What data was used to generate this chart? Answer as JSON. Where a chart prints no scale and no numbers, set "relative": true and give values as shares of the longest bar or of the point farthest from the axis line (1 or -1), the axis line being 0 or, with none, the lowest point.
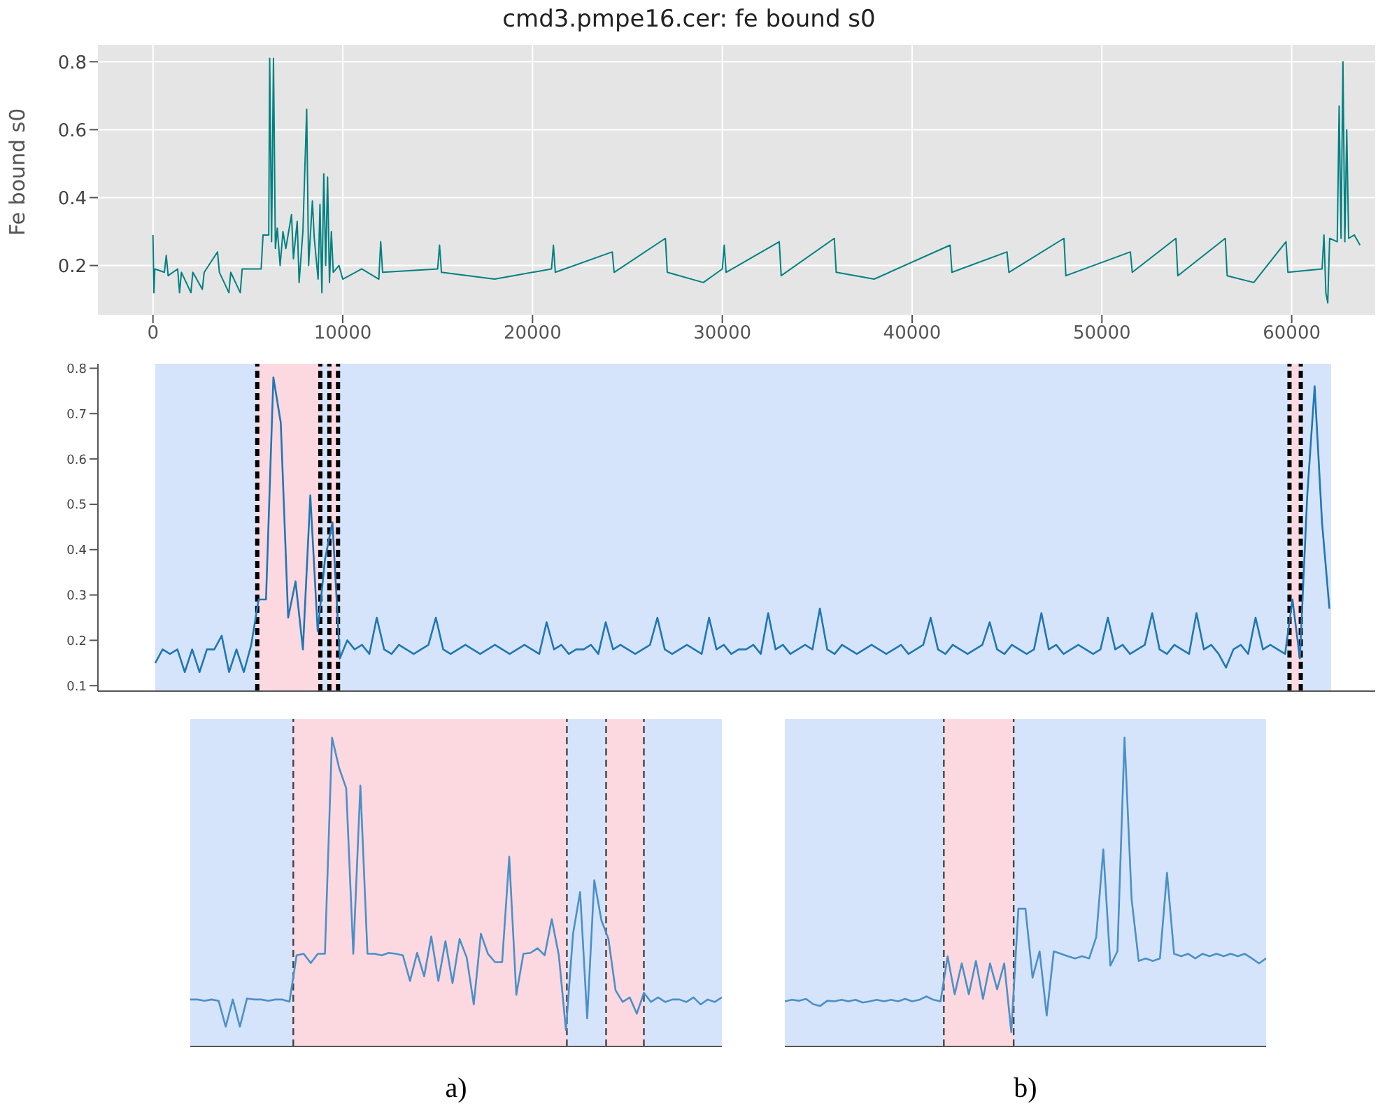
{
  "chart_data": [
    {
      "type": "line",
      "title": "cmd3.pmpe16.cer: fe bound s0",
      "ylabel": "Fe bound s0",
      "color": "#008080",
      "grid": true,
      "xlim": [
        -2900,
        64400
      ],
      "ylim": [
        0.055,
        0.85
      ],
      "xticks": [
        0,
        10000,
        20000,
        30000,
        40000,
        50000,
        60000
      ],
      "yticks": [
        0.2,
        0.4,
        0.6,
        0.8
      ],
      "x": [
        0,
        50,
        100,
        600,
        700,
        800,
        1300,
        1400,
        1500,
        2000,
        2100,
        2600,
        2700,
        3400,
        3500,
        4000,
        4100,
        4600,
        4700,
        5700,
        5800,
        6100,
        6150,
        6250,
        6350,
        6450,
        6550,
        6700,
        6850,
        7000,
        7300,
        7400,
        7600,
        7700,
        7900,
        8100,
        8200,
        8400,
        8500,
        8700,
        8800,
        8900,
        9000,
        9100,
        9200,
        9300,
        9400,
        9500,
        9800,
        10000,
        11000,
        11900,
        12000,
        12100,
        15000,
        15100,
        15200,
        18000,
        21000,
        21100,
        21200,
        24200,
        24300,
        27000,
        27100,
        29000,
        30000,
        30100,
        30200,
        33000,
        33100,
        35900,
        36000,
        38000,
        42000,
        42100,
        45000,
        45100,
        48000,
        48100,
        51500,
        51600,
        53900,
        54000,
        56500,
        56600,
        58000,
        59700,
        59800,
        61600,
        61700,
        61800,
        61900,
        62000,
        62400,
        62500,
        62600,
        62700,
        62800,
        62900,
        63000,
        63300,
        63600
      ],
      "values": [
        0.29,
        0.12,
        0.19,
        0.18,
        0.23,
        0.17,
        0.19,
        0.12,
        0.18,
        0.12,
        0.18,
        0.13,
        0.18,
        0.24,
        0.18,
        0.12,
        0.18,
        0.12,
        0.19,
        0.19,
        0.29,
        0.29,
        0.81,
        0.27,
        0.81,
        0.25,
        0.31,
        0.2,
        0.3,
        0.25,
        0.35,
        0.22,
        0.33,
        0.15,
        0.3,
        0.66,
        0.2,
        0.39,
        0.28,
        0.16,
        0.38,
        0.12,
        0.47,
        0.2,
        0.46,
        0.15,
        0.3,
        0.18,
        0.2,
        0.16,
        0.19,
        0.16,
        0.27,
        0.18,
        0.19,
        0.26,
        0.18,
        0.16,
        0.19,
        0.26,
        0.18,
        0.24,
        0.18,
        0.28,
        0.18,
        0.15,
        0.19,
        0.26,
        0.18,
        0.27,
        0.17,
        0.28,
        0.18,
        0.16,
        0.26,
        0.18,
        0.24,
        0.18,
        0.28,
        0.17,
        0.24,
        0.18,
        0.28,
        0.17,
        0.28,
        0.17,
        0.15,
        0.27,
        0.18,
        0.19,
        0.29,
        0.12,
        0.09,
        0.28,
        0.27,
        0.67,
        0.28,
        0.8,
        0.27,
        0.6,
        0.28,
        0.29,
        0.26
      ]
    },
    {
      "type": "line",
      "color": "#1f77b4",
      "tick_labels": "y",
      "ylim": [
        0.088,
        0.81
      ],
      "yticks": [
        0.1,
        0.2,
        0.3,
        0.4,
        0.5,
        0.6,
        0.7,
        0.8
      ],
      "categories": [
        null,
        null,
        null,
        null,
        null,
        null,
        null,
        null,
        null,
        null,
        null,
        null,
        null,
        null,
        null,
        null,
        null,
        null,
        null,
        null,
        null,
        null,
        null,
        null,
        null,
        null,
        null,
        null,
        null,
        null,
        null,
        null,
        null,
        null,
        null,
        null,
        null,
        null,
        null,
        null,
        null,
        null,
        null,
        null,
        null,
        null,
        null,
        null,
        null,
        null,
        null,
        null,
        null,
        null,
        null,
        null,
        null,
        null,
        null,
        null,
        null,
        null,
        null,
        null,
        null,
        null,
        null,
        null,
        null,
        null,
        null,
        null,
        null,
        null,
        null,
        null,
        null,
        null,
        null,
        null,
        null,
        null,
        null,
        null,
        null,
        null,
        null,
        null,
        null,
        null,
        null,
        null,
        null,
        null,
        null,
        null,
        null,
        null,
        null,
        null,
        null,
        null,
        null,
        null,
        null,
        null,
        null,
        null,
        null,
        null,
        null,
        null,
        null,
        null,
        null,
        null,
        null,
        null,
        null,
        null,
        null,
        null,
        null,
        null,
        null,
        null,
        null,
        null,
        null,
        null,
        null,
        null,
        null,
        null,
        null,
        null,
        null,
        null,
        null,
        null,
        null,
        null,
        null,
        null,
        null,
        null,
        null,
        null,
        null,
        null,
        null,
        null,
        null,
        null,
        null,
        null,
        null,
        null,
        null,
        null
      ],
      "values": [
        0.15,
        0.18,
        0.17,
        0.18,
        0.13,
        0.18,
        0.13,
        0.18,
        0.18,
        0.21,
        0.13,
        0.18,
        0.13,
        0.19,
        0.29,
        0.29,
        0.78,
        0.68,
        0.25,
        0.33,
        0.18,
        0.52,
        0.22,
        0.38,
        0.46,
        0.16,
        0.2,
        0.18,
        0.19,
        0.17,
        0.25,
        0.18,
        0.17,
        0.19,
        0.18,
        0.17,
        0.18,
        0.19,
        0.25,
        0.18,
        0.17,
        0.18,
        0.19,
        0.18,
        0.17,
        0.18,
        0.19,
        0.18,
        0.17,
        0.18,
        0.19,
        0.18,
        0.17,
        0.24,
        0.18,
        0.19,
        0.17,
        0.18,
        0.18,
        0.19,
        0.17,
        0.24,
        0.18,
        0.19,
        0.18,
        0.17,
        0.18,
        0.19,
        0.25,
        0.18,
        0.17,
        0.18,
        0.19,
        0.18,
        0.17,
        0.25,
        0.18,
        0.19,
        0.17,
        0.18,
        0.18,
        0.19,
        0.17,
        0.26,
        0.18,
        0.19,
        0.17,
        0.18,
        0.19,
        0.18,
        0.27,
        0.18,
        0.17,
        0.19,
        0.18,
        0.17,
        0.18,
        0.19,
        0.18,
        0.17,
        0.18,
        0.19,
        0.17,
        0.18,
        0.19,
        0.25,
        0.18,
        0.17,
        0.19,
        0.18,
        0.17,
        0.18,
        0.19,
        0.24,
        0.18,
        0.17,
        0.19,
        0.18,
        0.17,
        0.18,
        0.26,
        0.18,
        0.19,
        0.17,
        0.18,
        0.19,
        0.18,
        0.17,
        0.18,
        0.25,
        0.18,
        0.19,
        0.17,
        0.18,
        0.19,
        0.26,
        0.18,
        0.17,
        0.19,
        0.18,
        0.17,
        0.26,
        0.18,
        0.19,
        0.17,
        0.14,
        0.18,
        0.19,
        0.17,
        0.25,
        0.18,
        0.19,
        0.18,
        0.17,
        0.29,
        0.16,
        0.52,
        0.76,
        0.46,
        0.27
      ]
    },
    {
      "type": "line",
      "relative": true,
      "xlabel": "a)",
      "color": "#4a90c8",
      "tick_labels": false,
      "categories": [
        null,
        null,
        null,
        null,
        null,
        null,
        null,
        null,
        null,
        null,
        null,
        null,
        null,
        null,
        null,
        null,
        null,
        null,
        null,
        null,
        null,
        null,
        null,
        null,
        null,
        null,
        null,
        null,
        null,
        null,
        null,
        null,
        null,
        null,
        null,
        null,
        null,
        null,
        null,
        null,
        null,
        null,
        null,
        null,
        null,
        null,
        null,
        null,
        null,
        null,
        null,
        null,
        null,
        null,
        null,
        null,
        null,
        null,
        null,
        null,
        null,
        null,
        null,
        null,
        null,
        null,
        null,
        null,
        null,
        null,
        null,
        null,
        null,
        null,
        null,
        null
      ],
      "values": [
        0.152,
        0.152,
        0.148,
        0.152,
        0.148,
        0.064,
        0.152,
        0.064,
        0.155,
        0.152,
        0.152,
        0.148,
        0.152,
        0.152,
        0.145,
        0.295,
        0.3,
        0.27,
        0.3,
        0.3,
        1.0,
        0.902,
        0.836,
        0.3,
        0.845,
        0.3,
        0.3,
        0.295,
        0.303,
        0.3,
        0.295,
        0.212,
        0.303,
        0.227,
        0.356,
        0.212,
        0.341,
        0.205,
        0.348,
        0.288,
        0.136,
        0.365,
        0.3,
        0.273,
        0.273,
        0.614,
        0.167,
        0.3,
        0.303,
        0.318,
        0.295,
        0.412,
        0.295,
        0.053,
        0.364,
        0.5,
        0.091,
        0.538,
        0.409,
        0.348,
        0.182,
        0.144,
        0.159,
        0.106,
        0.174,
        0.144,
        0.159,
        0.144,
        0.152,
        0.152,
        0.144,
        0.159,
        0.136,
        0.152,
        0.144,
        0.159
      ]
    },
    {
      "type": "line",
      "relative": true,
      "xlabel": "b)",
      "color": "#4a90c8",
      "tick_labels": false,
      "categories": [
        null,
        null,
        null,
        null,
        null,
        null,
        null,
        null,
        null,
        null,
        null,
        null,
        null,
        null,
        null,
        null,
        null,
        null,
        null,
        null,
        null,
        null,
        null,
        null,
        null,
        null,
        null,
        null,
        null,
        null,
        null,
        null,
        null,
        null,
        null,
        null,
        null,
        null,
        null,
        null,
        null,
        null,
        null,
        null,
        null,
        null,
        null,
        null,
        null,
        null,
        null,
        null,
        null,
        null,
        null,
        null,
        null,
        null,
        null,
        null,
        null,
        null,
        null,
        null,
        null,
        null,
        null,
        null,
        null
      ],
      "values": [
        0.146,
        0.151,
        0.148,
        0.154,
        0.137,
        0.131,
        0.148,
        0.146,
        0.151,
        0.146,
        0.151,
        0.142,
        0.146,
        0.151,
        0.146,
        0.151,
        0.146,
        0.154,
        0.146,
        0.151,
        0.162,
        0.151,
        0.146,
        0.292,
        0.169,
        0.269,
        0.169,
        0.277,
        0.154,
        0.269,
        0.185,
        0.269,
        0.046,
        0.446,
        0.446,
        0.223,
        0.308,
        0.1,
        0.308,
        0.3,
        0.292,
        0.285,
        0.292,
        0.285,
        0.354,
        0.638,
        0.262,
        0.308,
        1.0,
        0.477,
        0.277,
        0.285,
        0.277,
        0.285,
        0.562,
        0.3,
        0.292,
        0.3,
        0.285,
        0.3,
        0.292,
        0.3,
        0.292,
        0.3,
        0.292,
        0.3,
        0.285,
        0.269,
        0.285
      ]
    }
  ]
}
